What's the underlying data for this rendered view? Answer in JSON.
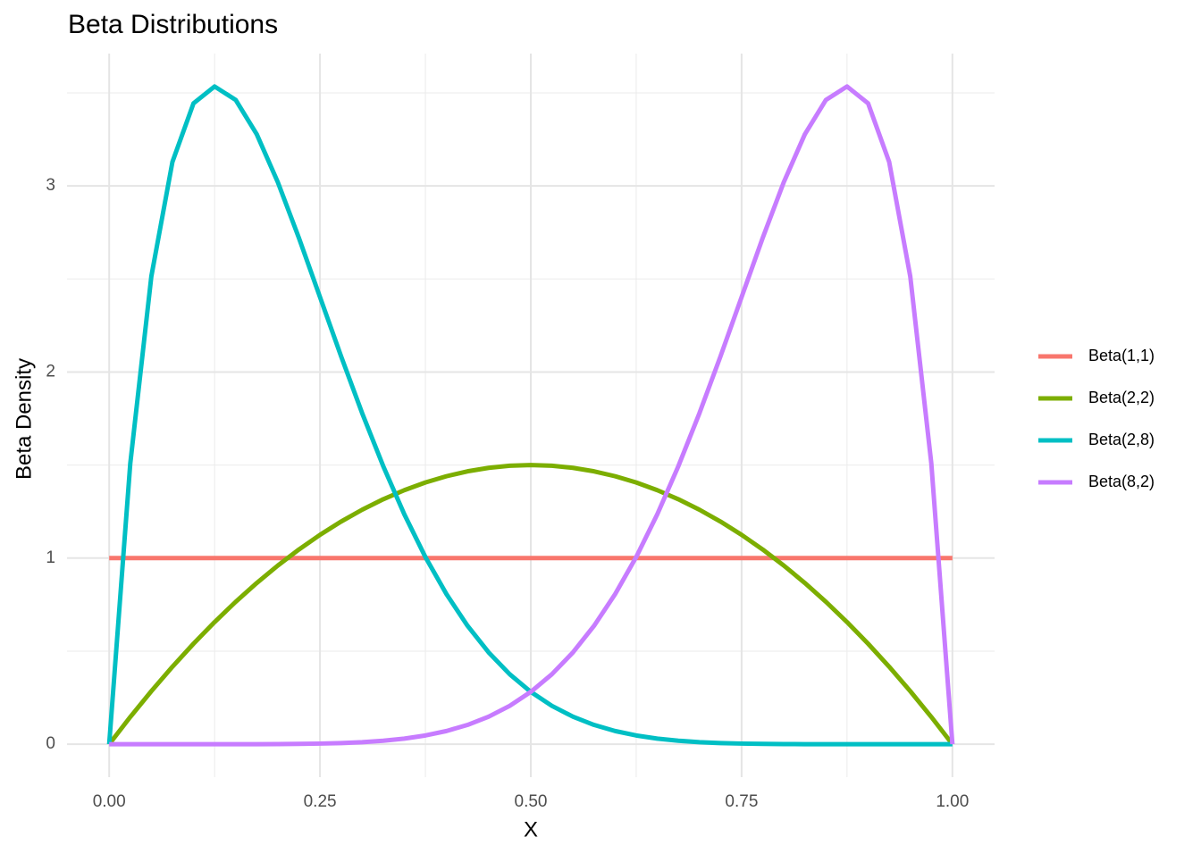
{
  "chart_data": {
    "type": "line",
    "title": "Beta Distributions",
    "x_label": "X",
    "y_label": "Beta Density",
    "x": [
      0,
      0.025,
      0.05,
      0.075,
      0.1,
      0.125,
      0.15,
      0.175,
      0.2,
      0.225,
      0.25,
      0.275,
      0.3,
      0.325,
      0.35,
      0.375,
      0.4,
      0.425,
      0.45,
      0.475,
      0.5,
      0.525,
      0.55,
      0.575,
      0.6,
      0.625,
      0.65,
      0.675,
      0.7,
      0.725,
      0.75,
      0.775,
      0.8,
      0.825,
      0.85,
      0.875,
      0.9,
      0.925,
      0.95,
      0.975,
      1
    ],
    "series": [
      {
        "name": "Beta(1,1)",
        "color": "#F8766D",
        "values": [
          1,
          1,
          1,
          1,
          1,
          1,
          1,
          1,
          1,
          1,
          1,
          1,
          1,
          1,
          1,
          1,
          1,
          1,
          1,
          1,
          1,
          1,
          1,
          1,
          1,
          1,
          1,
          1,
          1,
          1,
          1,
          1,
          1,
          1,
          1,
          1,
          1,
          1,
          1,
          1,
          1
        ]
      },
      {
        "name": "Beta(2,2)",
        "color": "#7CAE00",
        "values": [
          0,
          0.1463,
          0.285,
          0.4163,
          0.54,
          0.6563,
          0.765,
          0.8663,
          0.96,
          1.0463,
          1.125,
          1.1963,
          1.26,
          1.3163,
          1.365,
          1.4063,
          1.44,
          1.4663,
          1.485,
          1.4963,
          1.5,
          1.4963,
          1.485,
          1.4663,
          1.44,
          1.4063,
          1.365,
          1.3163,
          1.26,
          1.1963,
          1.125,
          1.0463,
          0.96,
          0.8663,
          0.765,
          0.6563,
          0.54,
          0.4163,
          0.285,
          0.1463,
          0
        ]
      },
      {
        "name": "Beta(2,8)",
        "color": "#00BFC4",
        "values": [
          0,
          1.5077,
          2.514,
          3.1289,
          3.4437,
          3.5343,
          3.4622,
          3.2775,
          3.0199,
          2.7205,
          2.4027,
          2.0847,
          1.7788,
          1.4941,
          1.2354,
          1.0058,
          0.8062,
          0.6361,
          0.4933,
          0.3759,
          0.2813,
          0.2062,
          0.148,
          0.1037,
          0.0708,
          0.0469,
          0.0301,
          0.0186,
          0.011,
          0.0062,
          0.0033,
          0.0016,
          0.0007,
          0.0003,
          0.0001,
          0,
          0,
          0,
          0,
          0,
          0
        ]
      },
      {
        "name": "Beta(8,2)",
        "color": "#C77CFF",
        "values": [
          0,
          0,
          0,
          0,
          0,
          0,
          0.0001,
          0.0003,
          0.0007,
          0.0016,
          0.0033,
          0.0062,
          0.011,
          0.0186,
          0.0301,
          0.0469,
          0.0708,
          0.1037,
          0.148,
          0.2062,
          0.2813,
          0.3759,
          0.4933,
          0.6361,
          0.8062,
          1.0058,
          1.2354,
          1.4941,
          1.7788,
          2.0847,
          2.4027,
          2.7205,
          3.0199,
          3.2775,
          3.4622,
          3.5343,
          3.4437,
          3.1289,
          2.514,
          1.5077,
          0
        ]
      }
    ],
    "xlim": [
      -0.05,
      1.05
    ],
    "ylim": [
      -0.177,
      3.711
    ],
    "xticks": [
      {
        "value": 0,
        "label": "0.00"
      },
      0.25,
      {
        "value": 0.5,
        "label": "0.50"
      },
      0.75,
      {
        "value": 1,
        "label": "1.00"
      }
    ],
    "yticks": [
      0,
      1,
      2,
      3
    ],
    "x_minor": [
      0.125,
      0.375,
      0.625,
      0.875
    ],
    "y_minor": [
      0.5,
      1.5,
      2.5,
      3.5
    ],
    "grid": true,
    "legend": "right"
  }
}
